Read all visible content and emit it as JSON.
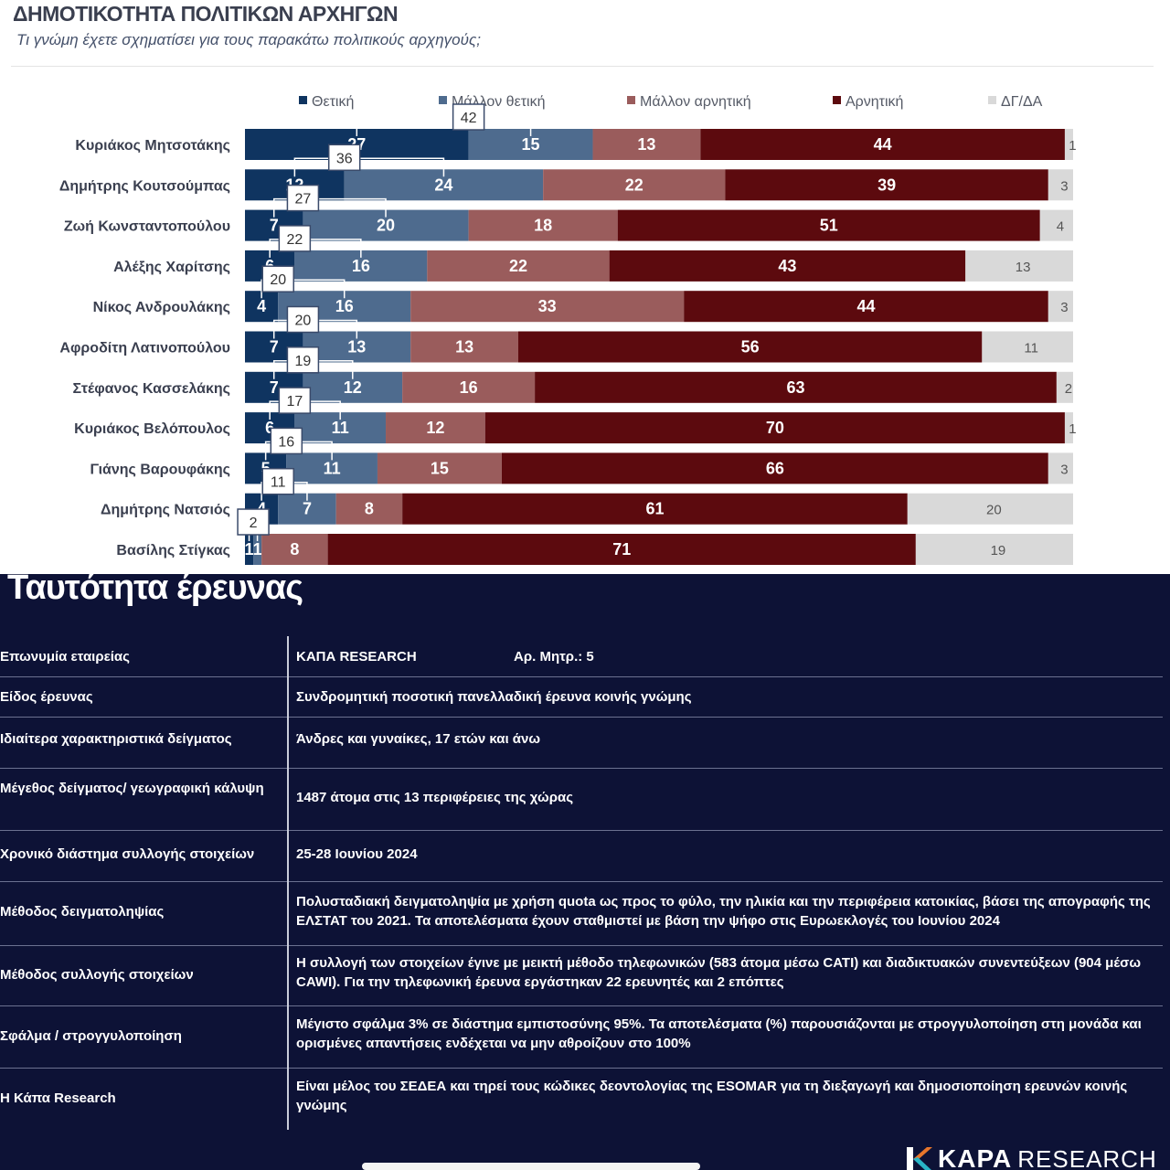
{
  "header": {
    "title": "ΔΗΜΟΤΙΚΟΤΗΤΑ ΠΟΛΙΤΙΚΩΝ ΑΡΧΗΓΩΝ",
    "subtitle": "Τι γνώμη έχετε σχηματίσει για τους παρακάτω πολιτικούς αρχηγούς;"
  },
  "chart_data": {
    "type": "bar",
    "orientation": "horizontal-stacked-100",
    "categories": [
      "Κυριάκος Μητσοτάκης",
      "Δημήτρης Κουτσούμπας",
      "Ζωή Κωνσταντοπούλου",
      "Αλέξης Χαρίτσης",
      "Νίκος Ανδρουλάκης",
      "Αφροδίτη Λατινοπούλου",
      "Στέφανος Κασσελάκης",
      "Κυριάκος Βελόπουλος",
      "Γιάνης Βαρουφάκης",
      "Δημήτρης Νατσιός",
      "Βασίλης Στίγκας"
    ],
    "series": [
      {
        "name": "Θετική",
        "color": "#0f3460",
        "values": [
          27,
          12,
          7,
          6,
          4,
          7,
          7,
          6,
          5,
          4,
          1
        ]
      },
      {
        "name": "Μάλλον θετική",
        "color": "#4e6b8e",
        "values": [
          15,
          24,
          20,
          16,
          16,
          13,
          12,
          11,
          11,
          7,
          1
        ]
      },
      {
        "name": "Μάλλον αρνητική",
        "color": "#9a5c5c",
        "values": [
          13,
          22,
          18,
          22,
          33,
          13,
          16,
          12,
          15,
          8,
          8
        ]
      },
      {
        "name": "Αρνητική",
        "color": "#5c0a0e",
        "values": [
          44,
          39,
          51,
          43,
          44,
          56,
          63,
          70,
          66,
          61,
          71
        ]
      },
      {
        "name": "ΔΓ/ΔΑ",
        "color": "#d9d9d9",
        "values": [
          1,
          3,
          4,
          13,
          3,
          11,
          2,
          1,
          3,
          20,
          19
        ]
      }
    ],
    "positive_totals": [
      42,
      36,
      27,
      22,
      20,
      20,
      19,
      17,
      16,
      11,
      2
    ],
    "legend_position": "top"
  },
  "survey": {
    "title": "Ταυτότητα έρευνας",
    "rows": [
      {
        "label": "Επωνυμία εταιρείας",
        "value": "ΚΑΠΑ RESEARCH",
        "extra": "Αρ. Μητρ.: 5"
      },
      {
        "label": "Είδος έρευνας",
        "value": "Συνδρομητική ποσοτική πανελλαδική έρευνα κοινής γνώμης"
      },
      {
        "label": "Ιδιαίτερα χαρακτηριστικά δείγματος",
        "value": "Άνδρες και γυναίκες, 17 ετών και άνω"
      },
      {
        "label": "Μέγεθος δείγματος/ γεωγραφική κάλυψη",
        "value": "1487 άτομα στις 13 περιφέρειες της χώρας"
      },
      {
        "label": "Χρονικό διάστημα συλλογής στοιχείων",
        "value": "25-28 Ιουνίου 2024"
      },
      {
        "label": "Μέθοδος δειγματοληψίας",
        "value": "Πολυσταδιακή δειγματοληψία με χρήση quota ως προς το φύλο, την ηλικία και την περιφέρεια κατοικίας, βάσει της απογραφής της ΕΛΣΤΑΤ του 2021. Τα αποτελέσματα έχουν σταθμιστεί με βάση την ψήφο στις Ευρωεκλογές του Ιουνίου 2024"
      },
      {
        "label": "Μέθοδος συλλογής στοιχείων",
        "value": "Η συλλογή των στοιχείων έγινε με μεικτή μέθοδο τηλεφωνικών (583 άτομα μέσω CATI) και διαδικτυακών συνεντεύξεων (904 μέσω CAWI). Για την τηλεφωνική έρευνα εργάστηκαν 22 ερευνητές και 2 επόπτες"
      },
      {
        "label": "Σφάλμα / στρογγυλοποίηση",
        "value": "Μέγιστο σφάλμα 3% σε διάστημα εμπιστοσύνης 95%. Τα αποτελέσματα (%) παρουσιάζονται με στρογγυλοποίηση στη μονάδα και ορισμένες απαντήσεις ενδέχεται να μην αθροίζουν στο 100%"
      },
      {
        "label": "Η Κάπα Research",
        "value": "Είναι μέλος του ΣΕΔΕΑ και τηρεί τους κώδικες δεοντολογίας της ESOMAR για τη διεξαγωγή και δημοσιοποίηση ερευνών κοινής γνώμης"
      }
    ]
  },
  "logo": {
    "brand_bold": "KAPA",
    "brand_light": "RESEARCH"
  }
}
